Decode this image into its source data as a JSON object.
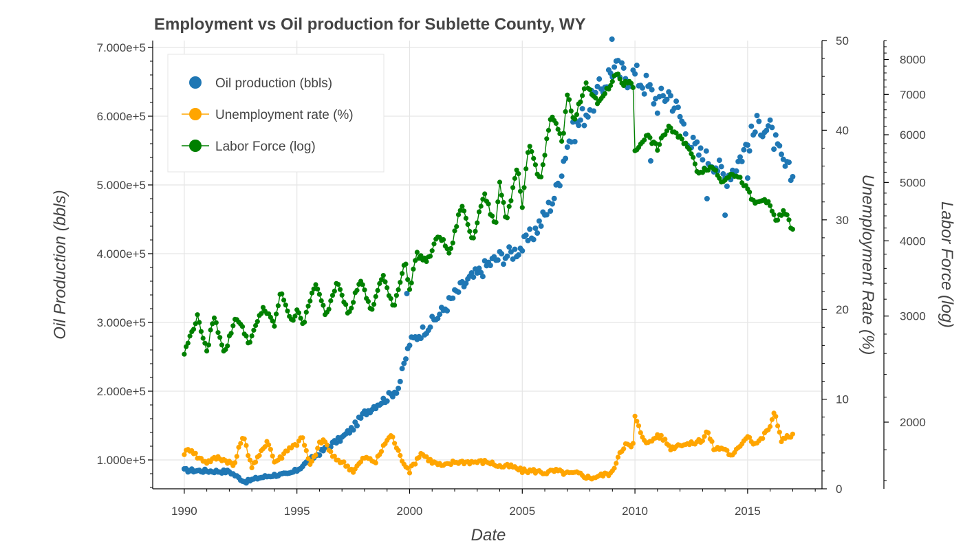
{
  "chart_data": {
    "type": "line",
    "title": "Employment vs Oil production for Sublette County, WY",
    "xlabel": "Date",
    "xlim": [
      1988.6,
      2018.3
    ],
    "x_ticks": [
      1990,
      1995,
      2000,
      2005,
      2010,
      2015
    ],
    "x_tick_labels": [
      "1990",
      "1995",
      "2000",
      "2005",
      "2010",
      "2015"
    ],
    "y_axes": {
      "left": {
        "label": "Oil Production (bbls)",
        "ylim": [
          58000,
          710000
        ],
        "ticks": [
          100000,
          200000,
          300000,
          400000,
          500000,
          600000,
          700000
        ],
        "tick_labels": [
          "1.000e+5",
          "2.000e+5",
          "3.000e+5",
          "4.000e+5",
          "5.000e+5",
          "6.000e+5",
          "7.000e+5"
        ]
      },
      "right1": {
        "label": "Unemployment Rate (%)",
        "ylim": [
          0,
          50
        ],
        "ticks": [
          0,
          10,
          20,
          30,
          40,
          50
        ],
        "tick_labels": [
          "0",
          "10",
          "20",
          "30",
          "40",
          "50"
        ]
      },
      "right2": {
        "label": "Labor Force (log)",
        "scale": "log",
        "ylim": [
          1550,
          8600
        ],
        "ticks": [
          2000,
          3000,
          4000,
          5000,
          6000,
          7000,
          8000
        ],
        "tick_labels": [
          "2000",
          "3000",
          "4000",
          "5000",
          "6000",
          "7000",
          "8000"
        ]
      }
    },
    "grid": true,
    "legend_position": "top-left",
    "series": [
      {
        "name": "Oil production (bbls)",
        "style": "scatter",
        "axis": "left",
        "color": "#1f77b4",
        "keypoints": {
          "x": [
            1990.0,
            1991.0,
            1992.0,
            1992.7,
            1993.3,
            1994.0,
            1994.6,
            1995.0,
            1995.5,
            1996.0,
            1996.5,
            1997.0,
            1997.5,
            1998.0,
            1998.5,
            1999.0,
            1999.5,
            2000.0,
            2000.5,
            2001.0,
            2001.5,
            2002.0,
            2002.5,
            2003.0,
            2003.5,
            2004.0,
            2004.5,
            2005.0,
            2005.5,
            2006.0,
            2006.5,
            2007.0,
            2007.5,
            2008.0,
            2008.5,
            2009.0,
            2009.5,
            2010.0,
            2010.5,
            2011.0,
            2011.5,
            2012.0,
            2012.5,
            2013.0,
            2013.5,
            2014.0,
            2014.5,
            2015.0,
            2015.5,
            2016.0,
            2016.5,
            2017.0
          ],
          "y": [
            85000,
            84000,
            83000,
            68000,
            74000,
            78000,
            79000,
            85000,
            98000,
            110000,
            122000,
            132000,
            147000,
            168000,
            180000,
            190000,
            205000,
            270000,
            285000,
            300000,
            318000,
            340000,
            358000,
            370000,
            385000,
            395000,
            400000,
            410000,
            430000,
            455000,
            490000,
            560000,
            590000,
            615000,
            640000,
            670000,
            660000,
            660000,
            645000,
            620000,
            635000,
            600000,
            560000,
            540000,
            535000,
            510000,
            530000,
            560000,
            590000,
            580000,
            535000,
            510000
          ]
        },
        "outliers": [
          [
            1999.88,
            342000
          ],
          [
            2008.98,
            712000
          ],
          [
            2010.7,
            535000
          ],
          [
            2013.2,
            480000
          ],
          [
            2014.0,
            456000
          ],
          [
            2015.0,
            510000
          ]
        ]
      },
      {
        "name": "Unemployment rate (%)",
        "style": "line-marker",
        "axis": "right1",
        "color": "#ffa500",
        "keypoints": {
          "x": [
            1990.0,
            1990.3,
            1990.6,
            1991.0,
            1991.5,
            1992.0,
            1992.2,
            1992.6,
            1993.0,
            1993.3,
            1993.7,
            1994.0,
            1994.3,
            1994.6,
            1995.0,
            1995.2,
            1995.6,
            1996.0,
            1996.2,
            1996.6,
            1997.0,
            1997.5,
            1998.0,
            1998.5,
            1999.0,
            1999.2,
            1999.6,
            2000.0,
            2000.5,
            2001.0,
            2001.5,
            2002.0,
            2002.5,
            2003.0,
            2003.5,
            2004.0,
            2004.5,
            2005.0,
            2005.5,
            2006.0,
            2006.5,
            2007.0,
            2007.5,
            2008.0,
            2008.5,
            2009.0,
            2009.3,
            2009.6,
            2009.9,
            2010.0,
            2010.3,
            2010.6,
            2011.0,
            2011.3,
            2011.6,
            2012.0,
            2012.5,
            2013.0,
            2013.2,
            2013.5,
            2014.0,
            2014.3,
            2014.7,
            2015.0,
            2015.3,
            2015.6,
            2016.0,
            2016.2,
            2016.5,
            2017.0
          ],
          "y": [
            4.0,
            4.5,
            3.5,
            3.0,
            3.5,
            3.0,
            2.5,
            6.0,
            2.5,
            3.5,
            5.5,
            3.0,
            3.5,
            4.5,
            5.0,
            6.0,
            2.5,
            5.0,
            5.5,
            3.5,
            3.0,
            2.0,
            3.5,
            3.0,
            5.5,
            6.0,
            3.5,
            2.0,
            4.0,
            3.0,
            2.5,
            3.0,
            3.0,
            3.0,
            3.0,
            2.5,
            2.5,
            2.0,
            2.0,
            1.8,
            2.0,
            1.7,
            1.7,
            1.2,
            1.5,
            1.8,
            4.0,
            5.0,
            4.5,
            8.0,
            6.0,
            5.0,
            6.0,
            5.5,
            4.5,
            5.0,
            5.0,
            5.5,
            6.5,
            4.5,
            4.5,
            3.5,
            5.0,
            6.0,
            5.0,
            5.5,
            7.0,
            8.5,
            5.5,
            6.0
          ]
        }
      },
      {
        "name": "Labor Force (log)",
        "style": "line-marker",
        "axis": "right2",
        "color": "#008000",
        "keypoints": {
          "x": [
            1990.0,
            1990.6,
            1991.0,
            1991.3,
            1991.8,
            1992.3,
            1992.9,
            1993.5,
            1994.0,
            1994.3,
            1994.8,
            1995.0,
            1995.3,
            1995.8,
            1996.3,
            1996.8,
            1997.3,
            1997.8,
            1998.3,
            1998.8,
            1999.3,
            1999.8,
            2000.0,
            2000.3,
            2000.8,
            2001.3,
            2001.8,
            2002.3,
            2002.8,
            2003.3,
            2003.8,
            2004.0,
            2004.3,
            2004.8,
            2005.0,
            2005.3,
            2005.8,
            2006.3,
            2006.8,
            2007.0,
            2007.3,
            2007.8,
            2008.3,
            2008.9,
            2009.2,
            2009.5,
            2009.8,
            2009.93,
            2010.0,
            2010.5,
            2011.0,
            2011.5,
            2011.8,
            2012.3,
            2012.8,
            2013.3,
            2013.6,
            2013.8,
            2014.3,
            2014.8,
            2015.3,
            2015.8,
            2016.3,
            2016.6,
            2016.85,
            2017.0
          ],
          "y": [
            2600,
            3000,
            2600,
            3000,
            2600,
            3000,
            2700,
            3100,
            2900,
            3300,
            2900,
            3100,
            2900,
            3400,
            3000,
            3450,
            3000,
            3450,
            3050,
            3500,
            3100,
            3700,
            3300,
            3800,
            3700,
            4100,
            3800,
            4600,
            4000,
            4800,
            4200,
            5000,
            4300,
            5300,
            4500,
            5800,
            5000,
            6500,
            5800,
            7000,
            6300,
            7300,
            6800,
            7200,
            7600,
            7250,
            7400,
            7200,
            5600,
            6000,
            5700,
            6200,
            6000,
            5800,
            5200,
            5300,
            5250,
            5000,
            5200,
            5000,
            4600,
            4700,
            4300,
            4500,
            4300,
            4150
          ]
        }
      }
    ]
  }
}
